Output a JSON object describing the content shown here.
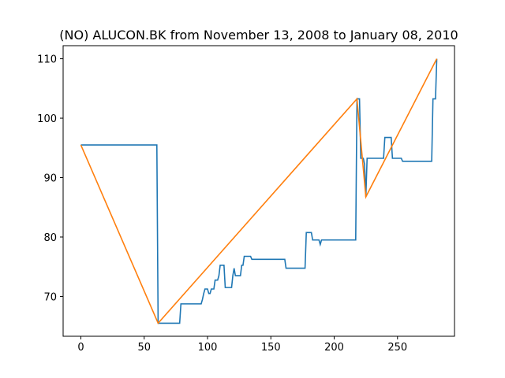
{
  "chart_data": {
    "type": "line",
    "title": "(NO) ALUCON.BK from November 13, 2008 to January 08, 2010",
    "xlabel": "",
    "ylabel": "",
    "xlim": [
      -14,
      295
    ],
    "ylim": [
      63.3,
      112.2
    ],
    "xticks": [
      0,
      50,
      100,
      150,
      200,
      250
    ],
    "yticks": [
      70,
      80,
      90,
      100,
      110
    ],
    "grid": false,
    "series": [
      {
        "color": "#1f77b4",
        "points": [
          [
            0,
            95.5
          ],
          [
            60,
            95.5
          ],
          [
            61,
            65.5
          ],
          [
            78,
            65.5
          ],
          [
            79,
            68.75
          ],
          [
            95,
            68.75
          ],
          [
            96,
            69.5
          ],
          [
            97,
            70.5
          ],
          [
            98,
            71.25
          ],
          [
            100,
            71.25
          ],
          [
            101,
            70.5
          ],
          [
            102,
            70.5
          ],
          [
            103,
            71.25
          ],
          [
            105,
            71.25
          ],
          [
            106,
            72.75
          ],
          [
            108,
            72.75
          ],
          [
            109,
            73.5
          ],
          [
            110,
            75.25
          ],
          [
            113,
            75.25
          ],
          [
            114,
            71.5
          ],
          [
            119,
            71.5
          ],
          [
            120,
            73.5
          ],
          [
            121,
            74.75
          ],
          [
            122,
            73.5
          ],
          [
            126,
            73.5
          ],
          [
            127,
            75.25
          ],
          [
            128,
            75.25
          ],
          [
            129,
            76.75
          ],
          [
            134,
            76.75
          ],
          [
            135,
            76.25
          ],
          [
            161,
            76.25
          ],
          [
            162,
            74.75
          ],
          [
            177,
            74.75
          ],
          [
            178,
            80.75
          ],
          [
            182,
            80.75
          ],
          [
            183,
            79.5
          ],
          [
            188,
            79.5
          ],
          [
            189,
            78.75
          ],
          [
            190,
            79.5
          ],
          [
            217,
            79.5
          ],
          [
            218,
            103.25
          ],
          [
            220,
            103.25
          ],
          [
            221,
            93.25
          ],
          [
            223,
            93.25
          ],
          [
            224,
            92.25
          ],
          [
            225,
            86.75
          ],
          [
            226,
            93.25
          ],
          [
            239,
            93.25
          ],
          [
            240,
            96.75
          ],
          [
            245,
            96.75
          ],
          [
            246,
            93.25
          ],
          [
            253,
            93.25
          ],
          [
            254,
            92.75
          ],
          [
            277,
            92.75
          ],
          [
            278,
            103.25
          ],
          [
            280,
            103.25
          ],
          [
            281,
            110
          ]
        ]
      },
      {
        "color": "#ff7f0e",
        "points": [
          [
            0,
            95.5
          ],
          [
            61,
            65.5
          ],
          [
            218,
            103.25
          ],
          [
            225,
            86.75
          ],
          [
            281,
            110
          ]
        ]
      }
    ]
  }
}
